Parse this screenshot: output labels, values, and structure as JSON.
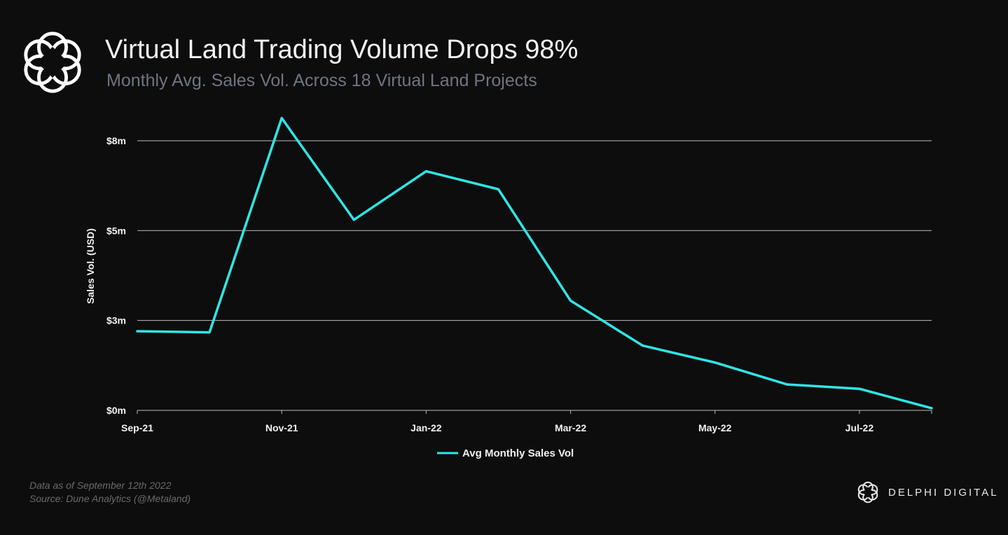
{
  "header": {
    "title": "Virtual Land Trading Volume Drops 98%",
    "subtitle": "Monthly Avg. Sales Vol. Across 18 Virtual Land Projects"
  },
  "footer": {
    "note_line1": "Data as of September 12th 2022",
    "note_line2": "Source: Dune Analytics (@Metaland)",
    "brand": "DELPHI DIGITAL",
    "logo_icon": "delphi-flower-logo-icon"
  },
  "chart_data": {
    "type": "line",
    "title": "Virtual Land Trading Volume Drops 98%",
    "subtitle": "Monthly Avg. Sales Vol. Across 18 Virtual Land Projects",
    "xlabel": "",
    "ylabel": "Sales Vol. (USD)",
    "x_tick_labels": [
      "Sep-21",
      "Nov-21",
      "Jan-22",
      "Mar-22",
      "May-22",
      "Jul-22"
    ],
    "y_tick_labels": [
      "$0m",
      "$3m",
      "$5m",
      "$8m"
    ],
    "y_tick_values": [
      0,
      2.5,
      5,
      7.5
    ],
    "ylim": [
      0,
      8.2
    ],
    "grid": true,
    "legend_position": "bottom-center",
    "line_color": "#2ee6e6",
    "x": [
      "Sep-21",
      "Oct-21",
      "Nov-21",
      "Dec-21",
      "Jan-22",
      "Feb-22",
      "Mar-22",
      "Apr-22",
      "May-22",
      "Jun-22",
      "Jul-22",
      "Aug-22"
    ],
    "series": [
      {
        "name": "Avg Monthly Sales Vol",
        "values": [
          2.2,
          2.17,
          8.13,
          5.3,
          6.65,
          6.15,
          3.05,
          1.8,
          1.33,
          0.72,
          0.6,
          0.06
        ]
      }
    ]
  }
}
